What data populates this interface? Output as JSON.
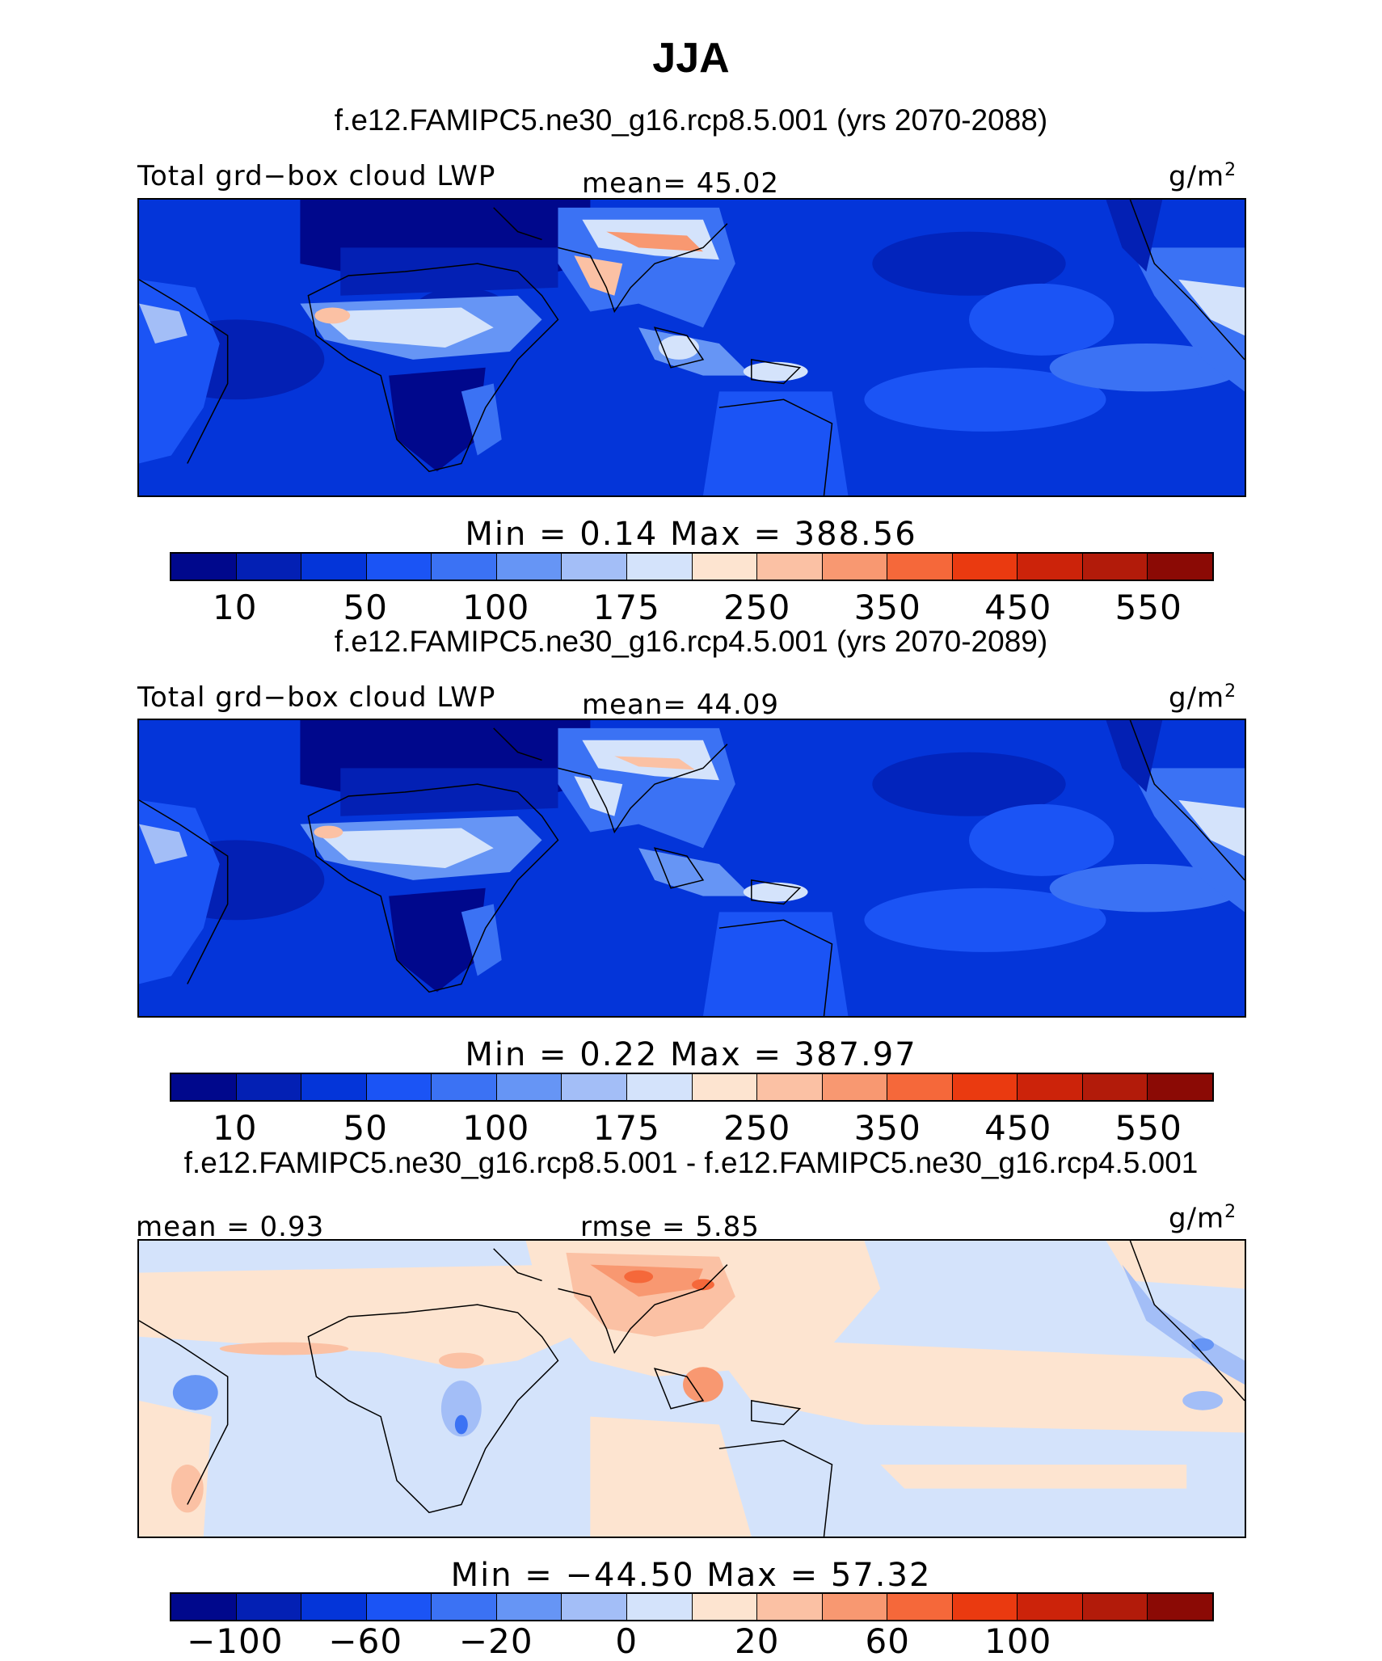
{
  "title": "JJA",
  "panels": [
    {
      "title": "f.e12.FAMIPC5.ne30_g16.rcp8.5.001 (yrs 2070-2088)",
      "left_label": "Total grd−box cloud LWP",
      "center_label": "mean=  45.02",
      "units": "g/m",
      "units_sup": "2",
      "min_max": "Min =   0.14 Max = 388.56",
      "min": 0.14,
      "max": 388.56,
      "mean": 45.02,
      "colorbar": {
        "colors": [
          "#00088c",
          "#0320b4",
          "#0435d9",
          "#1b54f5",
          "#3b72f4",
          "#6695f5",
          "#a3bef7",
          "#d4e3fb",
          "#fde4d0",
          "#fbc1a4",
          "#f89871",
          "#f5683a",
          "#ea3a10",
          "#cc230a",
          "#b21b0a",
          "#8b0a05"
        ],
        "ticks": [
          "10",
          "50",
          "100",
          "175",
          "250",
          "350",
          "450",
          "550"
        ]
      }
    },
    {
      "title": "f.e12.FAMIPC5.ne30_g16.rcp4.5.001 (yrs 2070-2089)",
      "left_label": "Total grd−box cloud LWP",
      "center_label": "mean=  44.09",
      "units": "g/m",
      "units_sup": "2",
      "min_max": "Min =   0.22 Max = 387.97",
      "min": 0.22,
      "max": 387.97,
      "mean": 44.09,
      "colorbar": {
        "colors": [
          "#00088c",
          "#0320b4",
          "#0435d9",
          "#1b54f5",
          "#3b72f4",
          "#6695f5",
          "#a3bef7",
          "#d4e3fb",
          "#fde4d0",
          "#fbc1a4",
          "#f89871",
          "#f5683a",
          "#ea3a10",
          "#cc230a",
          "#b21b0a",
          "#8b0a05"
        ],
        "ticks": [
          "10",
          "50",
          "100",
          "175",
          "250",
          "350",
          "450",
          "550"
        ]
      }
    },
    {
      "title": "f.e12.FAMIPC5.ne30_g16.rcp8.5.001 - f.e12.FAMIPC5.ne30_g16.rcp4.5.001",
      "left_label": "mean =   0.93",
      "center_label": "rmse =   5.85",
      "units": "g/m",
      "units_sup": "2",
      "min_max": "Min = −44.50 Max =  57.32",
      "min": -44.5,
      "max": 57.32,
      "mean": 0.93,
      "rmse": 5.85,
      "colorbar": {
        "colors": [
          "#00088c",
          "#0320b4",
          "#0435d9",
          "#1b54f5",
          "#3b72f4",
          "#6695f5",
          "#a3bef7",
          "#d4e3fb",
          "#fde4d0",
          "#fbc1a4",
          "#f89871",
          "#f5683a",
          "#ea3a10",
          "#cc230a",
          "#b21b0a",
          "#8b0a05"
        ],
        "ticks": [
          "−100",
          "−60",
          "−20",
          "0",
          "20",
          "60",
          "100"
        ]
      }
    }
  ]
}
